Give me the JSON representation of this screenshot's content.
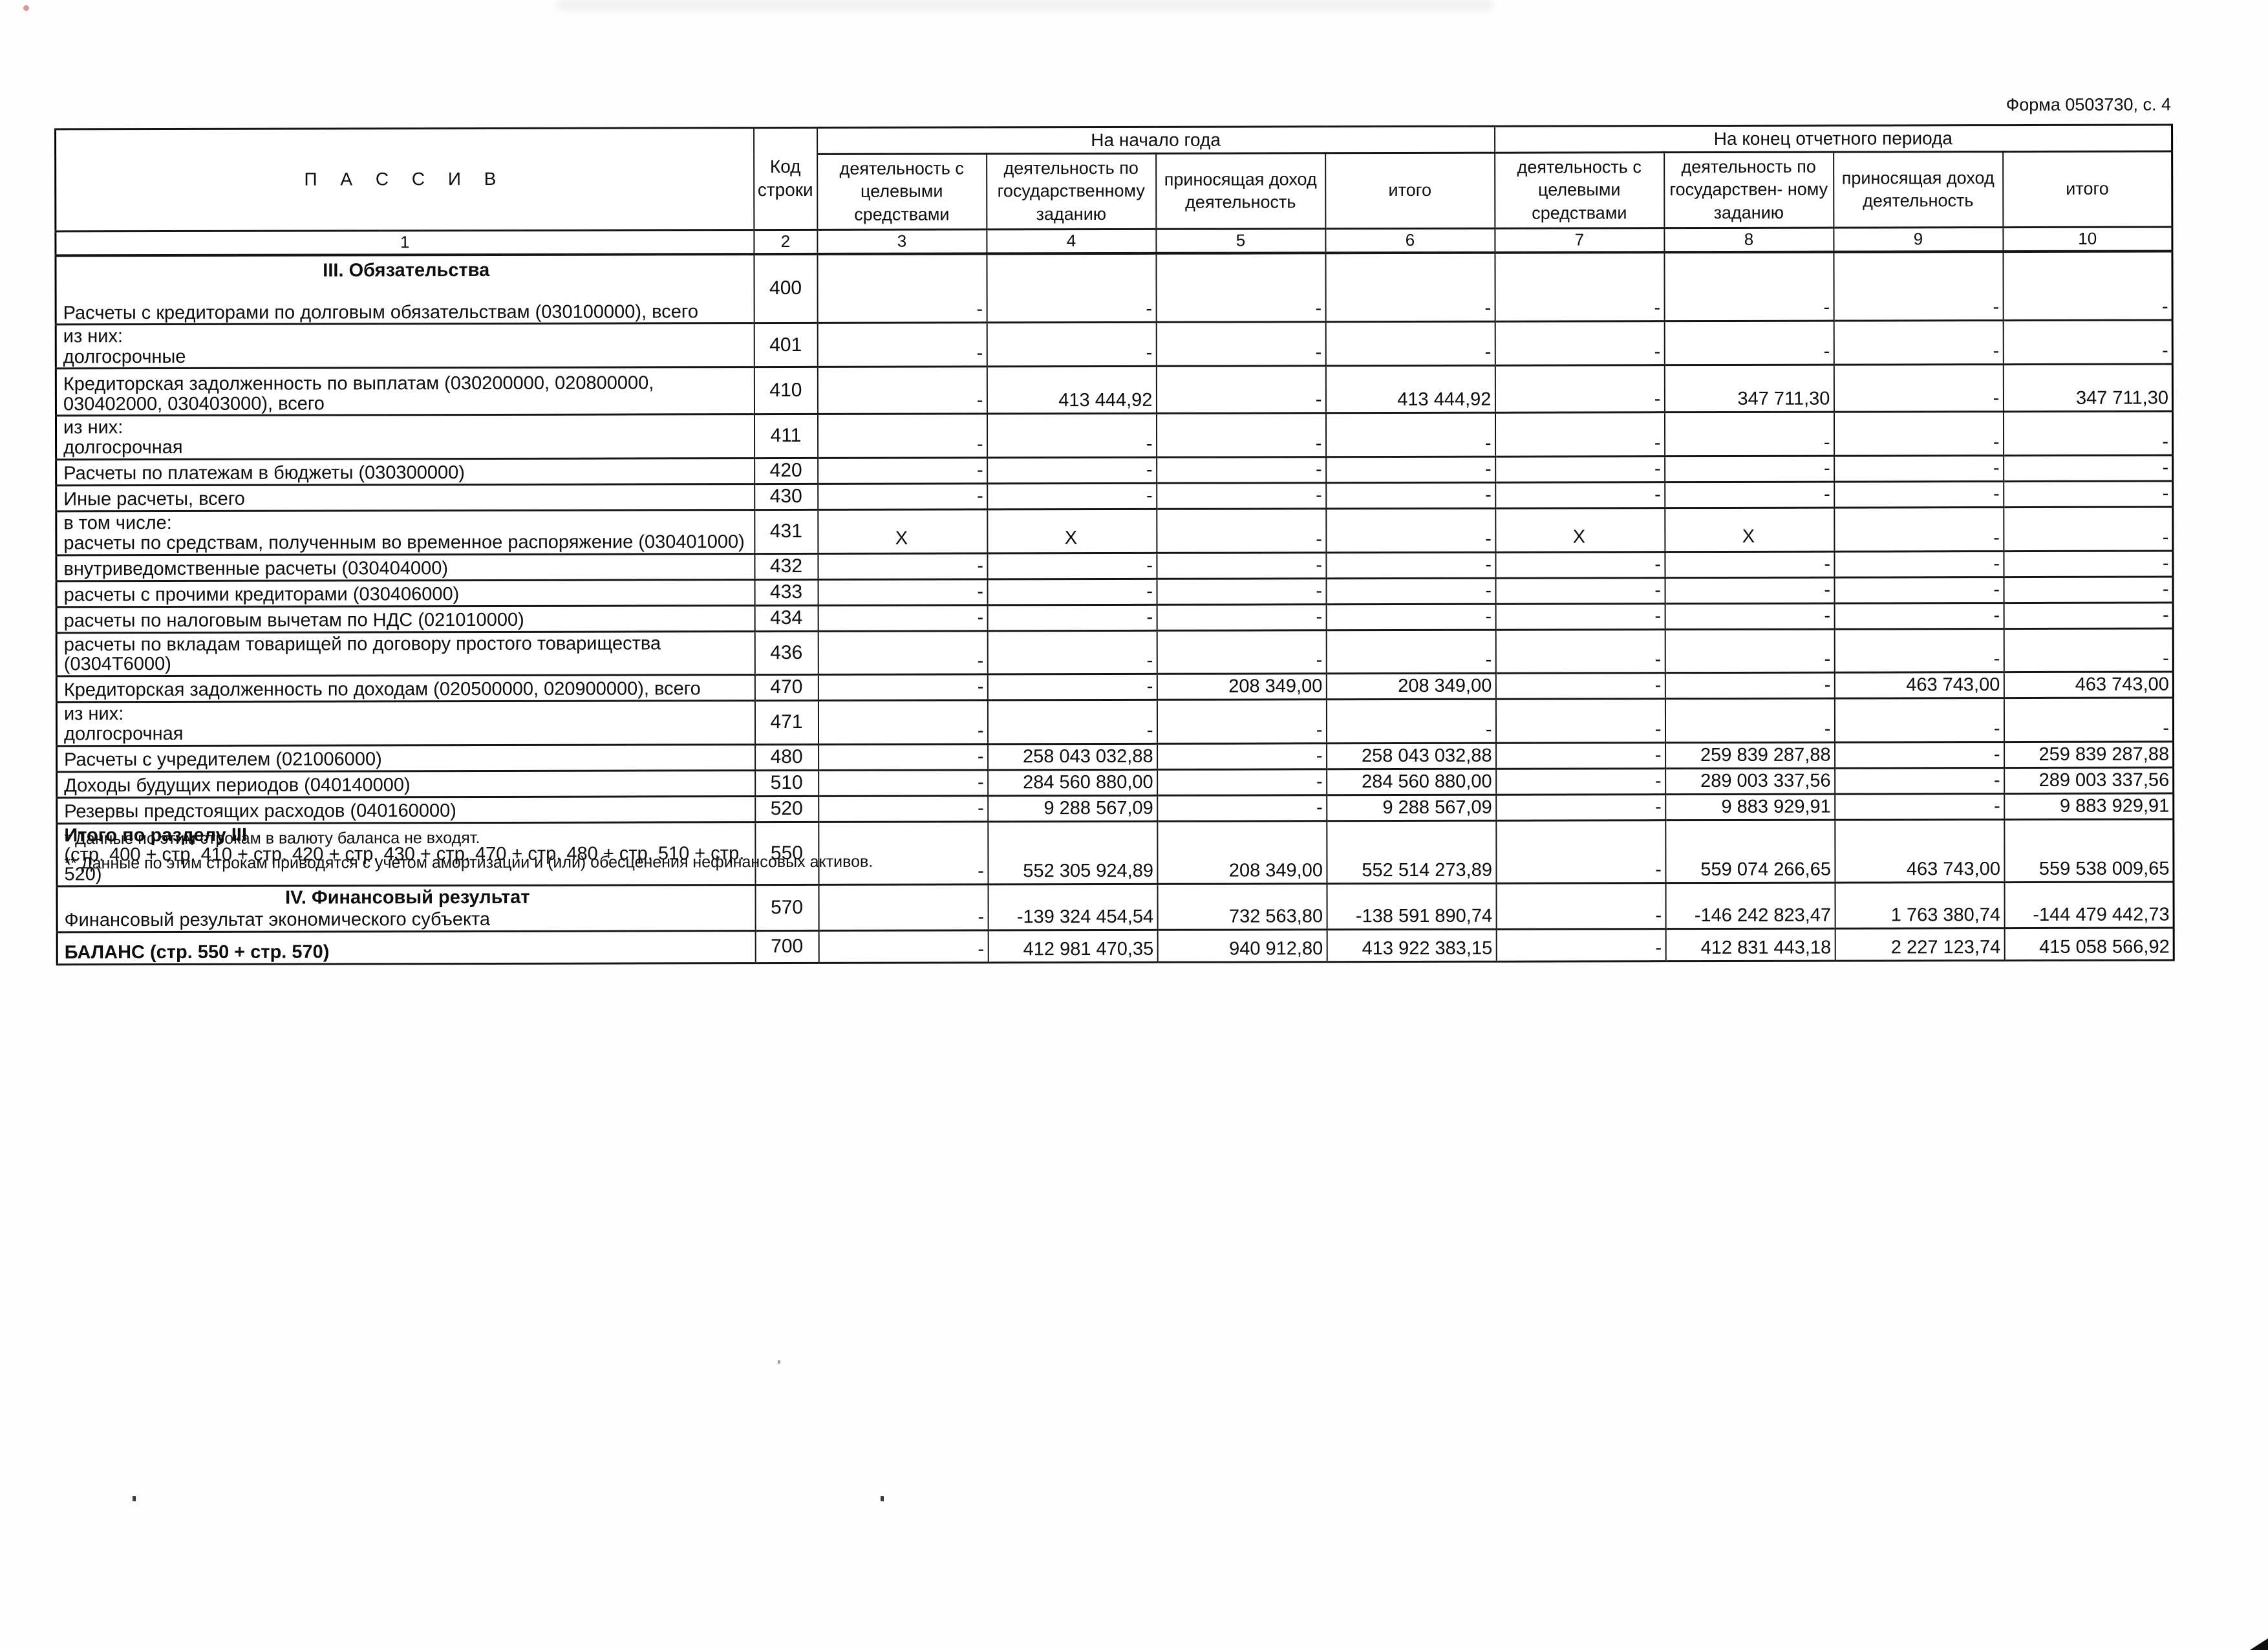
{
  "page": {
    "form_ref": "Форма 0503730, с. 4",
    "footnotes": [
      "* Данные по этим строкам в валюту баланса не входят.",
      "** Данные по этим строкам приводятся с учетом амортизации и (или) обесценения нефинансовых активов."
    ]
  },
  "table": {
    "passiv_header": "П А С С И В",
    "code_header": "Код строки",
    "group_headers": [
      "На начало года",
      "На конец отчетного периода"
    ],
    "col_headers": [
      "деятельность с целевыми средствами",
      "деятельность по государственному заданию",
      "приносящая доход деятельность",
      "итого",
      "деятельность с целевыми средствами",
      "деятельность по государствен- ному заданию",
      "приносящая доход деятельность",
      "итого"
    ],
    "index_row": [
      "1",
      "2",
      "3",
      "4",
      "5",
      "6",
      "7",
      "8",
      "9",
      "10"
    ],
    "rows": [
      {
        "code": "400",
        "section": "III. Обязательства",
        "label": "Расчеты с кредиторами по долговым обязательствам (030100000), всего",
        "values": [
          "-",
          "-",
          "-",
          "-",
          "-",
          "-",
          "-",
          "-"
        ]
      },
      {
        "code": "401",
        "prefix": "из них:",
        "label": "долгосрочные",
        "values": [
          "-",
          "-",
          "-",
          "-",
          "-",
          "-",
          "-",
          "-"
        ]
      },
      {
        "code": "410",
        "label": "Кредиторская задолженность по выплатам (030200000, 020800000, 030402000, 030403000), всего",
        "values": [
          "-",
          "413 444,92",
          "-",
          "413 444,92",
          "-",
          "347 711,30",
          "-",
          "347 711,30"
        ]
      },
      {
        "code": "411",
        "prefix": "из них:",
        "label": "долгосрочная",
        "values": [
          "-",
          "-",
          "-",
          "-",
          "-",
          "-",
          "-",
          "-"
        ]
      },
      {
        "code": "420",
        "label": "Расчеты по платежам в бюджеты (030300000)",
        "values": [
          "-",
          "-",
          "-",
          "-",
          "-",
          "-",
          "-",
          "-"
        ]
      },
      {
        "code": "430",
        "label": "Иные расчеты, всего",
        "values": [
          "-",
          "-",
          "-",
          "-",
          "-",
          "-",
          "-",
          "-"
        ]
      },
      {
        "code": "431",
        "prefix": "в том числе:",
        "label": "расчеты по средствам, полученным во временное распоряжение (030401000)",
        "values": [
          "X",
          "X",
          "-",
          "-",
          "X",
          "X",
          "-",
          "-"
        ]
      },
      {
        "code": "432",
        "label": "внутриведомственные расчеты (030404000)",
        "values": [
          "-",
          "-",
          "-",
          "-",
          "-",
          "-",
          "-",
          "-"
        ]
      },
      {
        "code": "433",
        "label": "расчеты с прочими кредиторами (030406000)",
        "values": [
          "-",
          "-",
          "-",
          "-",
          "-",
          "-",
          "-",
          "-"
        ]
      },
      {
        "code": "434",
        "label": "расчеты по налоговым вычетам по НДС (021010000)",
        "values": [
          "-",
          "-",
          "-",
          "-",
          "-",
          "-",
          "-",
          "-"
        ]
      },
      {
        "code": "436",
        "label": "расчеты по вкладам товарищей по договору простого товарищества (0304Т6000)",
        "values": [
          "-",
          "-",
          "-",
          "-",
          "-",
          "-",
          "-",
          "-"
        ]
      },
      {
        "code": "470",
        "label": "Кредиторская задолженность по доходам (020500000, 020900000), всего",
        "values": [
          "-",
          "-",
          "208 349,00",
          "208 349,00",
          "-",
          "-",
          "463 743,00",
          "463 743,00"
        ]
      },
      {
        "code": "471",
        "prefix": "из них:",
        "label": "долгосрочная",
        "values": [
          "-",
          "-",
          "-",
          "-",
          "-",
          "-",
          "-",
          "-"
        ]
      },
      {
        "code": "480",
        "label": "Расчеты с учредителем (021006000)",
        "values": [
          "-",
          "258 043 032,88",
          "-",
          "258 043 032,88",
          "-",
          "259 839 287,88",
          "-",
          "259 839 287,88"
        ]
      },
      {
        "code": "510",
        "label": "Доходы будущих периодов (040140000)",
        "values": [
          "-",
          "284 560 880,00",
          "-",
          "284 560 880,00",
          "-",
          "289 003 337,56",
          "-",
          "289 003 337,56"
        ]
      },
      {
        "code": "520",
        "label": "Резервы предстоящих расходов (040160000)",
        "values": [
          "-",
          "9 288 567,09",
          "-",
          "9 288 567,09",
          "-",
          "9 883 929,91",
          "-",
          "9 883 929,91"
        ]
      },
      {
        "code": "550",
        "bold": true,
        "label": "Итого по разделу III",
        "label2": "(стр. 400 + стр. 410 + стр. 420 + стр. 430 + стр. 470 + стр. 480 + стр. 510 + стр. 520)",
        "values": [
          "-",
          "552 305 924,89",
          "208 349,00",
          "552 514 273,89",
          "-",
          "559 074 266,65",
          "463 743,00",
          "559 538 009,65"
        ]
      },
      {
        "code": "570",
        "section": "IV. Финансовый результат",
        "label": "Финансовый результат экономического субъекта",
        "values": [
          "-",
          "-139 324 454,54",
          "732 563,80",
          "-138 591 890,74",
          "-",
          "-146 242 823,47",
          "1 763 380,74",
          "-144 479 442,73"
        ]
      },
      {
        "code": "700",
        "bold": true,
        "label": "БАЛАНС (стр. 550 + стр. 570)",
        "values": [
          "-",
          "412 981 470,35",
          "940 912,80",
          "413 922 383,15",
          "-",
          "412 831 443,18",
          "2 227 123,74",
          "415 058 566,92"
        ]
      }
    ]
  }
}
